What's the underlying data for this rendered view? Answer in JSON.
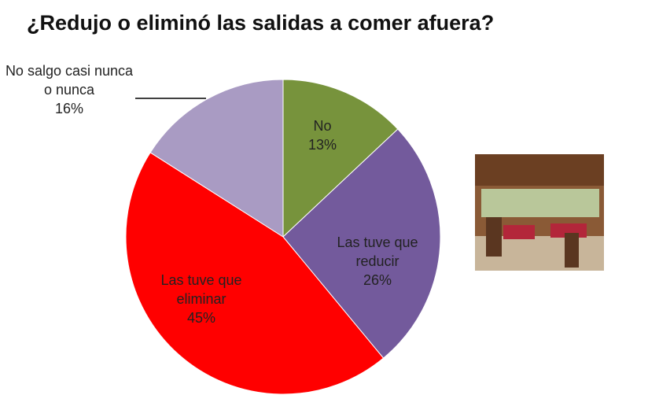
{
  "chart_data": {
    "type": "pie",
    "title": "¿Redujo o eliminó las salidas a comer afuera?",
    "categories": [
      "No",
      "Las tuve que reducir",
      "Las tuve que eliminar",
      "No salgo casi nunca o nunca"
    ],
    "values": [
      13,
      26,
      45,
      16
    ],
    "value_labels": [
      "13%",
      "26%",
      "45%",
      "16%"
    ],
    "colors": [
      "#77933c",
      "#735a9c",
      "#ff0000",
      "#a99bc3"
    ]
  }
}
